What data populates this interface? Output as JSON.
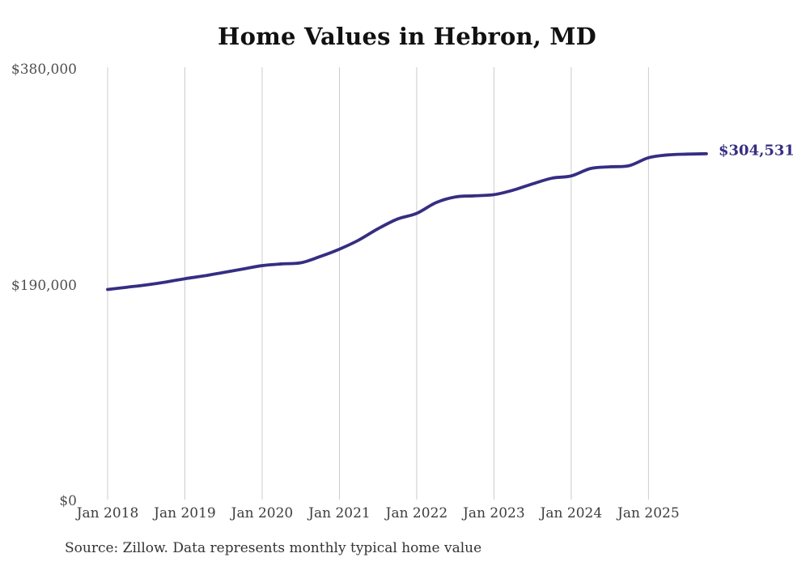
{
  "chart_data": {
    "type": "line",
    "title": "Home Values in Hebron, MD",
    "x": [
      "2018-01",
      "2018-04",
      "2018-07",
      "2018-10",
      "2019-01",
      "2019-04",
      "2019-07",
      "2019-10",
      "2020-01",
      "2020-04",
      "2020-07",
      "2020-10",
      "2021-01",
      "2021-04",
      "2021-07",
      "2021-10",
      "2022-01",
      "2022-04",
      "2022-07",
      "2022-10",
      "2023-01",
      "2023-04",
      "2023-07",
      "2023-10",
      "2024-01",
      "2024-04",
      "2024-07",
      "2024-10",
      "2025-01",
      "2025-04",
      "2025-07",
      "2025-10"
    ],
    "values": [
      185000,
      187000,
      189000,
      191500,
      194500,
      197000,
      200000,
      203000,
      206000,
      207500,
      208500,
      214000,
      220500,
      228500,
      238500,
      247000,
      252000,
      261500,
      266500,
      267500,
      268500,
      272500,
      278000,
      283000,
      285000,
      291500,
      293000,
      294000,
      301000,
      303500,
      304200,
      304531
    ],
    "series_name": "Monthly typical home value",
    "ylim": [
      0,
      380000
    ],
    "yticks": [
      {
        "value": 0,
        "label": "$0"
      },
      {
        "value": 190000,
        "label": "$190,000"
      },
      {
        "value": 380000,
        "label": "$380,000"
      }
    ],
    "xticks": [
      {
        "month": 0,
        "label": "Jan 2018"
      },
      {
        "month": 12,
        "label": "Jan 2019"
      },
      {
        "month": 24,
        "label": "Jan 2020"
      },
      {
        "month": 36,
        "label": "Jan 2021"
      },
      {
        "month": 48,
        "label": "Jan 2022"
      },
      {
        "month": 60,
        "label": "Jan 2023"
      },
      {
        "month": 72,
        "label": "Jan 2024"
      },
      {
        "month": 84,
        "label": "Jan 2025"
      }
    ],
    "end_label": "$304,531",
    "line_color": "#352e82",
    "gridline_color": "#cccccc",
    "grid": "vertical-only",
    "legend": "none",
    "source": "Source: Zillow. Data represents monthly typical home value"
  }
}
